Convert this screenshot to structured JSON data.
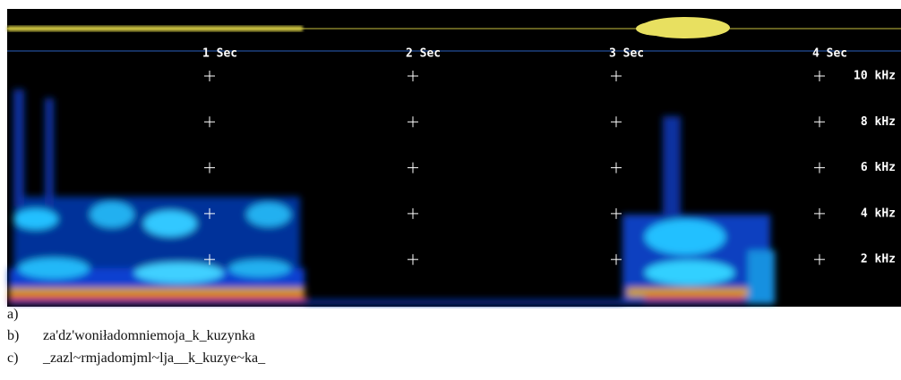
{
  "spectrogram": {
    "time_labels": [
      "1 Sec",
      "2 Sec",
      "3 Sec",
      "4 Sec"
    ],
    "freq_labels": [
      "10 kHz",
      "8 kHz",
      "6 kHz",
      "4 kHz",
      "2 kHz"
    ]
  },
  "captions": [
    {
      "marker": "a)"
    },
    {
      "marker": "b)",
      "text": "za'dz'woniładomniemoja_k_kuzynka"
    },
    {
      "marker": "c)",
      "text": "_zazl~rmjadomjml~lja__k_kuzye~ka_"
    }
  ]
}
